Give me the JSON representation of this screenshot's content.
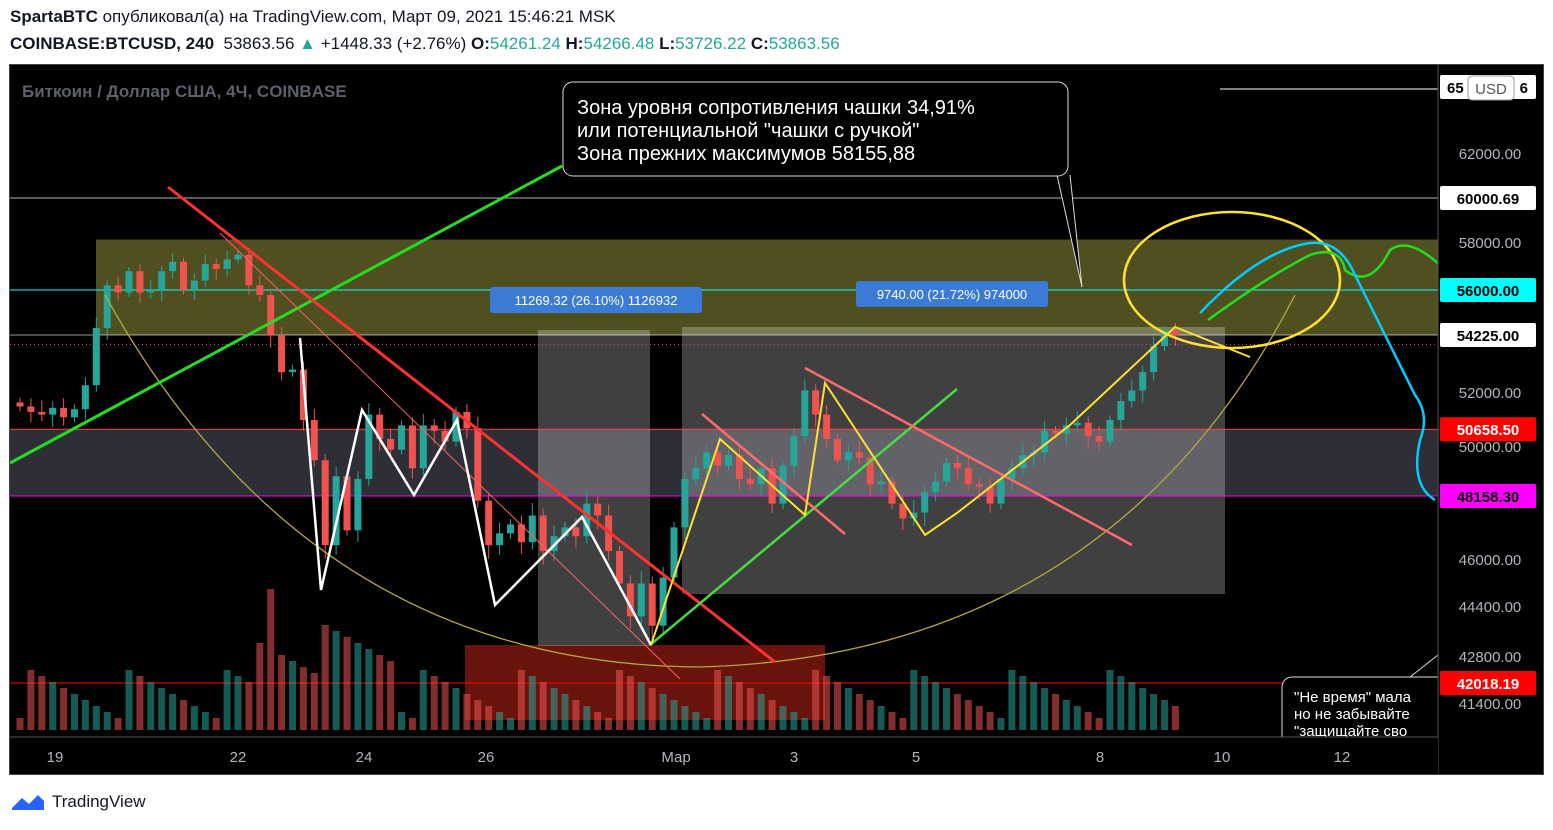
{
  "header": {
    "author": "SpartaBTC",
    "published_text": "опубликовал(а) на TradingView.com, Март 09, 2021 15:46:21 MSK",
    "symbol": "COINBASE:BTCUSD, 240",
    "last": "53863.56",
    "change": "+1448.33 (+2.76%)",
    "o_label": "O:",
    "o": "54261.24",
    "h_label": "H:",
    "h": "54266.48",
    "l_label": "L:",
    "l": "53726.22",
    "c_label": "C:",
    "c": "53863.56"
  },
  "chart_title": "Биткоин / Доллар США, 4Ч, COINBASE",
  "currency_badge": "USD",
  "annotation_box": {
    "line1": "Зона уровня сопротивления чашки 34,91%",
    "line2": "или потенциальной \"чашки с ручкой\"",
    "line3": "Зона прежних максимумов 58155,88"
  },
  "bottom_note": {
    "line1": "\"Не время\" мала",
    "line2": "но не забывайте",
    "line3": "\"защищайте сво"
  },
  "measure_labels": [
    "11269.32 (26.10%) 1126932",
    "9740.00 (21.72%) 974000"
  ],
  "price_tags": [
    {
      "value": "60000.69",
      "bg": "#ffffff",
      "fg": "#000000",
      "price": 60000.69
    },
    {
      "value": "56000.00",
      "bg": "#00ffff",
      "fg": "#000000",
      "price": 56000
    },
    {
      "value": "54225.00",
      "bg": "#ffffff",
      "fg": "#000000",
      "price": 54225
    },
    {
      "value": "50658.50",
      "bg": "#ff0000",
      "fg": "#ffffff",
      "price": 50658.5
    },
    {
      "value": "48158.30",
      "bg": "#ff00ff",
      "fg": "#000000",
      "price": 48158.3
    },
    {
      "value": "42018.19",
      "bg": "#ff0000",
      "fg": "#ffffff",
      "price": 42018.19
    }
  ],
  "top_partial_tag": "65",
  "top_partial_tag_end": "6",
  "footer": {
    "brand": "TradingView"
  },
  "colors": {
    "bull": "#26a69a",
    "bear": "#ef5350",
    "resistance_zone": "#6b6a2a",
    "cup_line": "#b5a642"
  },
  "chart_data": {
    "type": "candlestick",
    "title": "Биткоин / Доллар США, 4Ч, COINBASE",
    "y_axis_ticks": [
      "62000.00",
      "60000.00",
      "58000.00",
      "56000.00",
      "54225.00",
      "52000.00",
      "50000.00",
      "46000.00",
      "44400.00",
      "42800.00",
      "41400.00"
    ],
    "x_axis_ticks": [
      "19",
      "22",
      "24",
      "26",
      "Мар",
      "3",
      "5",
      "8",
      "10",
      "12"
    ],
    "ylim": [
      40000,
      65500
    ],
    "close": [
      51500,
      51300,
      51200,
      51450,
      51100,
      51400,
      52300,
      54500,
      56200,
      55900,
      56800,
      55900,
      56000,
      56800,
      57200,
      56000,
      56400,
      57100,
      56900,
      57300,
      57500,
      56200,
      55800,
      54200,
      52800,
      52900,
      51000,
      49500,
      46500,
      48900,
      47000,
      48800,
      51200,
      50300,
      49900,
      50800,
      49200,
      50800,
      50600,
      50200,
      51300,
      50700,
      48000,
      46500,
      46900,
      47200,
      46600,
      47500,
      46300,
      46800,
      47100,
      46800,
      47900,
      47500,
      46300,
      45200,
      44100,
      45200,
      43800,
      45400,
      47100,
      48800,
      49200,
      49800,
      49300,
      49700,
      48800,
      48600,
      49200,
      47900,
      49300,
      50400,
      52100,
      51200,
      50300,
      49500,
      49800,
      49600,
      48600,
      48700,
      47900,
      47400,
      47600,
      48300,
      48700,
      49400,
      49200,
      48600,
      48500,
      47900,
      48800,
      49200,
      49700,
      49800,
      50600,
      50500,
      50800,
      50900,
      50400,
      50200,
      51000,
      51700,
      52100,
      52800,
      53800,
      54400,
      54200
    ],
    "volume_scale_note": "relative",
    "series": [
      {
        "name": "BTCUSD",
        "type": "candlestick"
      }
    ]
  }
}
